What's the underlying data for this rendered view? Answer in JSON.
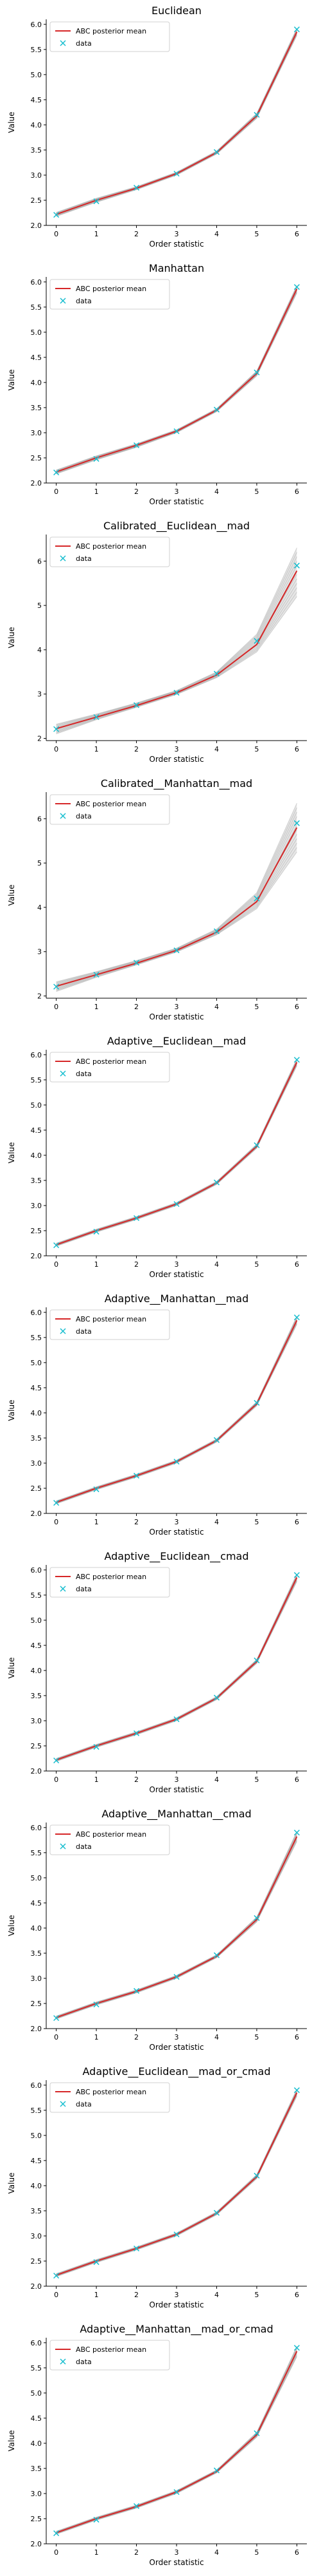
{
  "chart_data": [
    {
      "type": "line",
      "title": "Euclidean",
      "xlabel": "Order statistic",
      "ylabel": "Value",
      "x": [
        0,
        1,
        2,
        3,
        4,
        5,
        6
      ],
      "xticks": [
        "0",
        "1",
        "2",
        "3",
        "4",
        "5",
        "6"
      ],
      "ylim": [
        2.0,
        6.1
      ],
      "yticks": [
        "2.0",
        "2.5",
        "3.0",
        "3.5",
        "4.0",
        "4.5",
        "5.0",
        "5.5",
        "6.0"
      ],
      "ytick_values": [
        2.0,
        2.5,
        3.0,
        3.5,
        4.0,
        4.5,
        5.0,
        5.5,
        6.0
      ],
      "series": [
        {
          "name": "ABC posterior mean",
          "color": "#d62728",
          "values": [
            2.22,
            2.5,
            2.74,
            3.03,
            3.45,
            4.18,
            5.85
          ]
        },
        {
          "name": "data",
          "color": "#17becf",
          "values": [
            2.21,
            2.48,
            2.75,
            3.03,
            3.46,
            4.2,
            5.9
          ]
        }
      ],
      "band": {
        "lower": [
          2.18,
          2.46,
          2.71,
          3.0,
          3.42,
          4.13,
          5.78
        ],
        "upper": [
          2.26,
          2.54,
          2.77,
          3.06,
          3.48,
          4.23,
          5.92
        ]
      },
      "legend": {
        "position": "upper-left",
        "entries": [
          "ABC posterior mean",
          "data"
        ]
      }
    },
    {
      "type": "line",
      "title": "Manhattan",
      "xlabel": "Order statistic",
      "ylabel": "Value",
      "x": [
        0,
        1,
        2,
        3,
        4,
        5,
        6
      ],
      "xticks": [
        "0",
        "1",
        "2",
        "3",
        "4",
        "5",
        "6"
      ],
      "ylim": [
        2.0,
        6.1
      ],
      "yticks": [
        "2.0",
        "2.5",
        "3.0",
        "3.5",
        "4.0",
        "4.5",
        "5.0",
        "5.5",
        "6.0"
      ],
      "ytick_values": [
        2.0,
        2.5,
        3.0,
        3.5,
        4.0,
        4.5,
        5.0,
        5.5,
        6.0
      ],
      "series": [
        {
          "name": "ABC posterior mean",
          "color": "#d62728",
          "values": [
            2.22,
            2.5,
            2.75,
            3.03,
            3.45,
            4.18,
            5.86
          ]
        },
        {
          "name": "data",
          "color": "#17becf",
          "values": [
            2.21,
            2.48,
            2.75,
            3.03,
            3.46,
            4.2,
            5.9
          ]
        }
      ],
      "band": {
        "lower": [
          2.18,
          2.46,
          2.71,
          3.0,
          3.42,
          4.13,
          5.78
        ],
        "upper": [
          2.26,
          2.54,
          2.78,
          3.06,
          3.48,
          4.23,
          5.93
        ]
      },
      "legend": {
        "position": "upper-left",
        "entries": [
          "ABC posterior mean",
          "data"
        ]
      }
    },
    {
      "type": "line",
      "title": "Calibrated__Euclidean__mad",
      "xlabel": "Order statistic",
      "ylabel": "Value",
      "x": [
        0,
        1,
        2,
        3,
        4,
        5,
        6
      ],
      "xticks": [
        "0",
        "1",
        "2",
        "3",
        "4",
        "5",
        "6"
      ],
      "ylim": [
        1.95,
        6.6
      ],
      "yticks": [
        "2",
        "3",
        "4",
        "5",
        "6"
      ],
      "ytick_values": [
        2,
        3,
        4,
        5,
        6
      ],
      "series": [
        {
          "name": "ABC posterior mean",
          "color": "#d62728",
          "values": [
            2.22,
            2.48,
            2.74,
            3.03,
            3.43,
            4.12,
            5.78
          ]
        },
        {
          "name": "data",
          "color": "#17becf",
          "values": [
            2.21,
            2.48,
            2.75,
            3.03,
            3.46,
            4.2,
            5.9
          ]
        }
      ],
      "band": {
        "lower": [
          2.1,
          2.42,
          2.7,
          2.99,
          3.37,
          3.95,
          5.2
        ],
        "upper": [
          2.32,
          2.55,
          2.8,
          3.08,
          3.5,
          4.35,
          6.3
        ]
      },
      "legend": {
        "position": "upper-left",
        "entries": [
          "ABC posterior mean",
          "data"
        ]
      }
    },
    {
      "type": "line",
      "title": "Calibrated__Manhattan__mad",
      "xlabel": "Order statistic",
      "ylabel": "Value",
      "x": [
        0,
        1,
        2,
        3,
        4,
        5,
        6
      ],
      "xticks": [
        "0",
        "1",
        "2",
        "3",
        "4",
        "5",
        "6"
      ],
      "ylim": [
        1.95,
        6.6
      ],
      "yticks": [
        "2",
        "3",
        "4",
        "5",
        "6"
      ],
      "ytick_values": [
        2,
        3,
        4,
        5,
        6
      ],
      "series": [
        {
          "name": "ABC posterior mean",
          "color": "#d62728",
          "values": [
            2.22,
            2.48,
            2.74,
            3.03,
            3.44,
            4.13,
            5.8
          ]
        },
        {
          "name": "data",
          "color": "#17becf",
          "values": [
            2.21,
            2.48,
            2.75,
            3.03,
            3.46,
            4.2,
            5.9
          ]
        }
      ],
      "band": {
        "lower": [
          2.1,
          2.42,
          2.7,
          2.99,
          3.38,
          3.97,
          5.25
        ],
        "upper": [
          2.32,
          2.55,
          2.8,
          3.08,
          3.51,
          4.33,
          6.35
        ]
      },
      "legend": {
        "position": "upper-left",
        "entries": [
          "ABC posterior mean",
          "data"
        ]
      }
    },
    {
      "type": "line",
      "title": "Adaptive__Euclidean__mad",
      "xlabel": "Order statistic",
      "ylabel": "Value",
      "x": [
        0,
        1,
        2,
        3,
        4,
        5,
        6
      ],
      "xticks": [
        "0",
        "1",
        "2",
        "3",
        "4",
        "5",
        "6"
      ],
      "ylim": [
        2.0,
        6.1
      ],
      "yticks": [
        "2.0",
        "2.5",
        "3.0",
        "3.5",
        "4.0",
        "4.5",
        "5.0",
        "5.5",
        "6.0"
      ],
      "ytick_values": [
        2.0,
        2.5,
        3.0,
        3.5,
        4.0,
        4.5,
        5.0,
        5.5,
        6.0
      ],
      "series": [
        {
          "name": "ABC posterior mean",
          "color": "#d62728",
          "values": [
            2.22,
            2.5,
            2.75,
            3.03,
            3.45,
            4.18,
            5.85
          ]
        },
        {
          "name": "data",
          "color": "#17becf",
          "values": [
            2.21,
            2.48,
            2.75,
            3.03,
            3.46,
            4.2,
            5.9
          ]
        }
      ],
      "band": {
        "lower": [
          2.19,
          2.47,
          2.72,
          3.0,
          3.42,
          4.14,
          5.78
        ],
        "upper": [
          2.25,
          2.53,
          2.78,
          3.06,
          3.48,
          4.22,
          5.92
        ]
      },
      "legend": {
        "position": "upper-left",
        "entries": [
          "ABC posterior mean",
          "data"
        ]
      }
    },
    {
      "type": "line",
      "title": "Adaptive__Manhattan__mad",
      "xlabel": "Order statistic",
      "ylabel": "Value",
      "x": [
        0,
        1,
        2,
        3,
        4,
        5,
        6
      ],
      "xticks": [
        "0",
        "1",
        "2",
        "3",
        "4",
        "5",
        "6"
      ],
      "ylim": [
        2.0,
        6.1
      ],
      "yticks": [
        "2.0",
        "2.5",
        "3.0",
        "3.5",
        "4.0",
        "4.5",
        "5.0",
        "5.5",
        "6.0"
      ],
      "ytick_values": [
        2.0,
        2.5,
        3.0,
        3.5,
        4.0,
        4.5,
        5.0,
        5.5,
        6.0
      ],
      "series": [
        {
          "name": "ABC posterior mean",
          "color": "#d62728",
          "values": [
            2.22,
            2.5,
            2.75,
            3.03,
            3.45,
            4.18,
            5.84
          ]
        },
        {
          "name": "data",
          "color": "#17becf",
          "values": [
            2.21,
            2.48,
            2.75,
            3.03,
            3.46,
            4.2,
            5.9
          ]
        }
      ],
      "band": {
        "lower": [
          2.19,
          2.47,
          2.72,
          3.0,
          3.42,
          4.14,
          5.76
        ],
        "upper": [
          2.25,
          2.53,
          2.78,
          3.06,
          3.48,
          4.22,
          5.92
        ]
      },
      "legend": {
        "position": "upper-left",
        "entries": [
          "ABC posterior mean",
          "data"
        ]
      }
    },
    {
      "type": "line",
      "title": "Adaptive__Euclidean__cmad",
      "xlabel": "Order statistic",
      "ylabel": "Value",
      "x": [
        0,
        1,
        2,
        3,
        4,
        5,
        6
      ],
      "xticks": [
        "0",
        "1",
        "2",
        "3",
        "4",
        "5",
        "6"
      ],
      "ylim": [
        2.0,
        6.1
      ],
      "yticks": [
        "2.0",
        "2.5",
        "3.0",
        "3.5",
        "4.0",
        "4.5",
        "5.0",
        "5.5",
        "6.0"
      ],
      "ytick_values": [
        2.0,
        2.5,
        3.0,
        3.5,
        4.0,
        4.5,
        5.0,
        5.5,
        6.0
      ],
      "series": [
        {
          "name": "ABC posterior mean",
          "color": "#d62728",
          "values": [
            2.22,
            2.5,
            2.75,
            3.03,
            3.45,
            4.18,
            5.85
          ]
        },
        {
          "name": "data",
          "color": "#17becf",
          "values": [
            2.21,
            2.48,
            2.75,
            3.03,
            3.46,
            4.2,
            5.9
          ]
        }
      ],
      "band": {
        "lower": [
          2.19,
          2.47,
          2.72,
          3.0,
          3.42,
          4.14,
          5.77
        ],
        "upper": [
          2.25,
          2.53,
          2.78,
          3.06,
          3.48,
          4.22,
          5.92
        ]
      },
      "legend": {
        "position": "upper-left",
        "entries": [
          "ABC posterior mean",
          "data"
        ]
      }
    },
    {
      "type": "line",
      "title": "Adaptive__Manhattan__cmad",
      "xlabel": "Order statistic",
      "ylabel": "Value",
      "x": [
        0,
        1,
        2,
        3,
        4,
        5,
        6
      ],
      "xticks": [
        "0",
        "1",
        "2",
        "3",
        "4",
        "5",
        "6"
      ],
      "ylim": [
        2.0,
        6.1
      ],
      "yticks": [
        "2.0",
        "2.5",
        "3.0",
        "3.5",
        "4.0",
        "4.5",
        "5.0",
        "5.5",
        "6.0"
      ],
      "ytick_values": [
        2.0,
        2.5,
        3.0,
        3.5,
        4.0,
        4.5,
        5.0,
        5.5,
        6.0
      ],
      "series": [
        {
          "name": "ABC posterior mean",
          "color": "#d62728",
          "values": [
            2.22,
            2.5,
            2.74,
            3.03,
            3.44,
            4.17,
            5.82
          ]
        },
        {
          "name": "data",
          "color": "#17becf",
          "values": [
            2.21,
            2.48,
            2.75,
            3.03,
            3.46,
            4.2,
            5.9
          ]
        }
      ],
      "band": {
        "lower": [
          2.19,
          2.47,
          2.71,
          3.0,
          3.41,
          4.12,
          5.72
        ],
        "upper": [
          2.25,
          2.53,
          2.77,
          3.06,
          3.47,
          4.22,
          5.92
        ]
      },
      "legend": {
        "position": "upper-left",
        "entries": [
          "ABC posterior mean",
          "data"
        ]
      }
    },
    {
      "type": "line",
      "title": "Adaptive__Euclidean__mad_or_cmad",
      "xlabel": "Order statistic",
      "ylabel": "Value",
      "x": [
        0,
        1,
        2,
        3,
        4,
        5,
        6
      ],
      "xticks": [
        "0",
        "1",
        "2",
        "3",
        "4",
        "5",
        "6"
      ],
      "ylim": [
        2.0,
        6.1
      ],
      "yticks": [
        "2.0",
        "2.5",
        "3.0",
        "3.5",
        "4.0",
        "4.5",
        "5.0",
        "5.5",
        "6.0"
      ],
      "ytick_values": [
        2.0,
        2.5,
        3.0,
        3.5,
        4.0,
        4.5,
        5.0,
        5.5,
        6.0
      ],
      "series": [
        {
          "name": "ABC posterior mean",
          "color": "#d62728",
          "values": [
            2.22,
            2.5,
            2.75,
            3.03,
            3.45,
            4.18,
            5.85
          ]
        },
        {
          "name": "data",
          "color": "#17becf",
          "values": [
            2.21,
            2.48,
            2.75,
            3.03,
            3.46,
            4.2,
            5.9
          ]
        }
      ],
      "band": {
        "lower": [
          2.19,
          2.47,
          2.72,
          3.0,
          3.42,
          4.14,
          5.78
        ],
        "upper": [
          2.25,
          2.53,
          2.78,
          3.06,
          3.48,
          4.22,
          5.92
        ]
      },
      "legend": {
        "position": "upper-left",
        "entries": [
          "ABC posterior mean",
          "data"
        ]
      }
    },
    {
      "type": "line",
      "title": "Adaptive__Manhattan__mad_or_cmad",
      "xlabel": "Order statistic",
      "ylabel": "Value",
      "x": [
        0,
        1,
        2,
        3,
        4,
        5,
        6
      ],
      "xticks": [
        "0",
        "1",
        "2",
        "3",
        "4",
        "5",
        "6"
      ],
      "ylim": [
        2.0,
        6.1
      ],
      "yticks": [
        "2.0",
        "2.5",
        "3.0",
        "3.5",
        "4.0",
        "4.5",
        "5.0",
        "5.5",
        "6.0"
      ],
      "ytick_values": [
        2.0,
        2.5,
        3.0,
        3.5,
        4.0,
        4.5,
        5.0,
        5.5,
        6.0
      ],
      "series": [
        {
          "name": "ABC posterior mean",
          "color": "#d62728",
          "values": [
            2.22,
            2.5,
            2.74,
            3.03,
            3.44,
            4.17,
            5.83
          ]
        },
        {
          "name": "data",
          "color": "#17becf",
          "values": [
            2.21,
            2.48,
            2.75,
            3.03,
            3.46,
            4.2,
            5.9
          ]
        }
      ],
      "band": {
        "lower": [
          2.19,
          2.47,
          2.71,
          3.0,
          3.41,
          4.12,
          5.72
        ],
        "upper": [
          2.25,
          2.53,
          2.77,
          3.06,
          3.47,
          4.22,
          5.93
        ]
      },
      "legend": {
        "position": "upper-left",
        "entries": [
          "ABC posterior mean",
          "data"
        ]
      }
    }
  ]
}
